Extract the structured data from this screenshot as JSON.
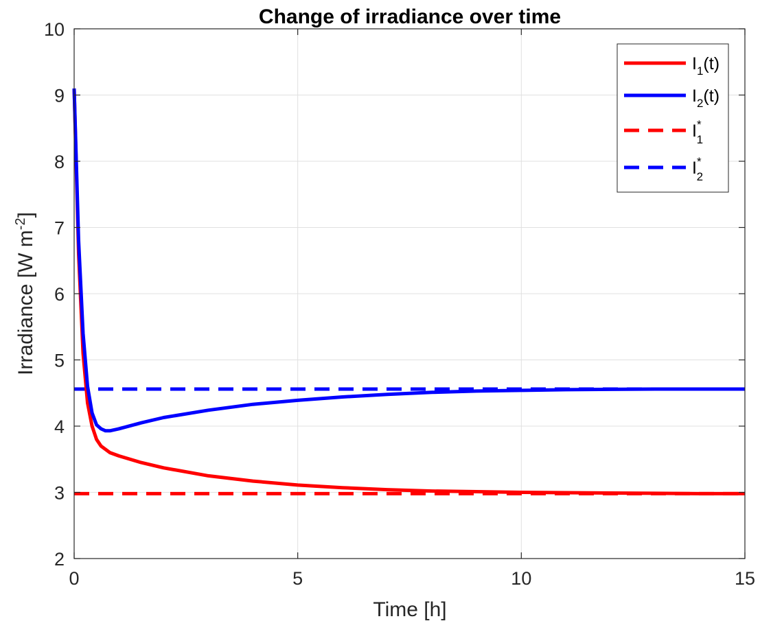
{
  "chart_data": {
    "type": "line",
    "title": "Change of irradiance over time",
    "xlabel": "Time [h]",
    "ylabel": "Irradiance [W m",
    "ylabel_exponent": "-2",
    "ylabel_close": "]",
    "xlim": [
      0,
      15
    ],
    "ylim": [
      2,
      10
    ],
    "xticks": [
      0,
      5,
      10,
      15
    ],
    "yticks": [
      2,
      3,
      4,
      5,
      6,
      7,
      8,
      9,
      10
    ],
    "xtick_labels": [
      "0",
      "5",
      "10",
      "15"
    ],
    "ytick_labels": [
      "2",
      "3",
      "4",
      "5",
      "6",
      "7",
      "8",
      "9",
      "10"
    ],
    "grid": true,
    "legend_position": "top-right",
    "series": [
      {
        "name": "I1(t)",
        "legend_base": "I",
        "legend_sub": "1",
        "legend_sup": "",
        "legend_suffix": "(t)",
        "color": "#ff0000",
        "style": "solid",
        "x": [
          0,
          0.1,
          0.2,
          0.3,
          0.4,
          0.5,
          0.6,
          0.8,
          1.0,
          1.5,
          2,
          3,
          4,
          5,
          6,
          7,
          8,
          9,
          10,
          11,
          12,
          13,
          14,
          15
        ],
        "y": [
          9.1,
          6.6,
          5.1,
          4.35,
          4.0,
          3.8,
          3.7,
          3.6,
          3.55,
          3.45,
          3.37,
          3.25,
          3.17,
          3.11,
          3.07,
          3.04,
          3.02,
          3.01,
          3.0,
          2.995,
          2.99,
          2.985,
          2.98,
          2.98
        ]
      },
      {
        "name": "I2(t)",
        "legend_base": "I",
        "legend_sub": "2",
        "legend_sup": "",
        "legend_suffix": "(t)",
        "color": "#0000ff",
        "style": "solid",
        "x": [
          0,
          0.1,
          0.2,
          0.3,
          0.4,
          0.5,
          0.6,
          0.7,
          0.8,
          1.0,
          1.5,
          2,
          3,
          4,
          5,
          6,
          7,
          8,
          9,
          10,
          11,
          12,
          13,
          14,
          15
        ],
        "y": [
          9.1,
          6.8,
          5.4,
          4.6,
          4.2,
          4.02,
          3.96,
          3.93,
          3.93,
          3.96,
          4.05,
          4.13,
          4.24,
          4.33,
          4.39,
          4.44,
          4.48,
          4.51,
          4.53,
          4.54,
          4.55,
          4.555,
          4.56,
          4.56,
          4.56
        ]
      },
      {
        "name": "I1*",
        "legend_base": "I",
        "legend_sub": "1",
        "legend_sup": "*",
        "legend_suffix": "",
        "color": "#ff0000",
        "style": "dashed",
        "x": [
          0,
          15
        ],
        "y": [
          2.98,
          2.98
        ]
      },
      {
        "name": "I2*",
        "legend_base": "I",
        "legend_sub": "2",
        "legend_sup": "*",
        "legend_suffix": "",
        "color": "#0000ff",
        "style": "dashed",
        "x": [
          0,
          15
        ],
        "y": [
          4.56,
          4.56
        ]
      }
    ]
  }
}
